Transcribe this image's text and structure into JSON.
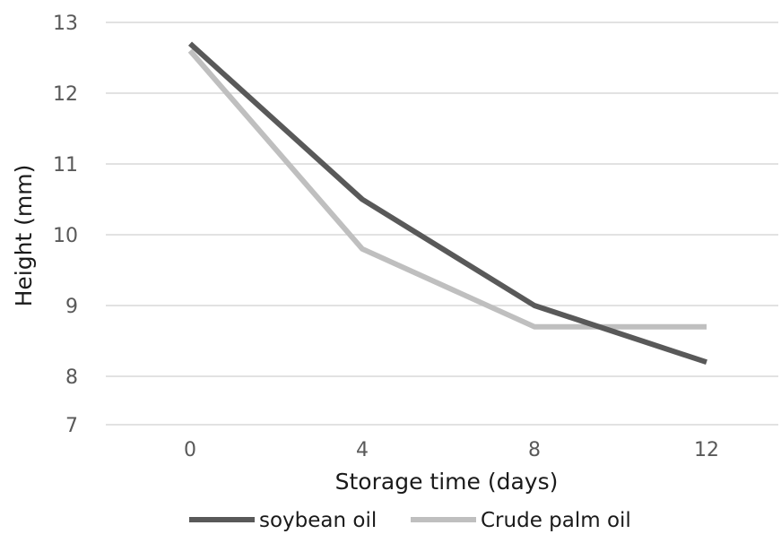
{
  "chart_data": {
    "type": "line",
    "x": [
      "0",
      "4",
      "8",
      "12"
    ],
    "series": [
      {
        "name": "soybean oil",
        "values": [
          12.7,
          10.5,
          9.0,
          8.2
        ],
        "color": "#595959"
      },
      {
        "name": "Crude palm oil",
        "values": [
          12.6,
          9.8,
          8.7,
          8.7
        ],
        "color": "#bfbfbf"
      }
    ],
    "xlabel": "Storage time (days)",
    "ylabel": "Height (mm)",
    "yticks": [
      13,
      12,
      11,
      10,
      9,
      8,
      7
    ],
    "grid": true,
    "legend": "bottom",
    "gridColor": "#d9d9d9"
  }
}
